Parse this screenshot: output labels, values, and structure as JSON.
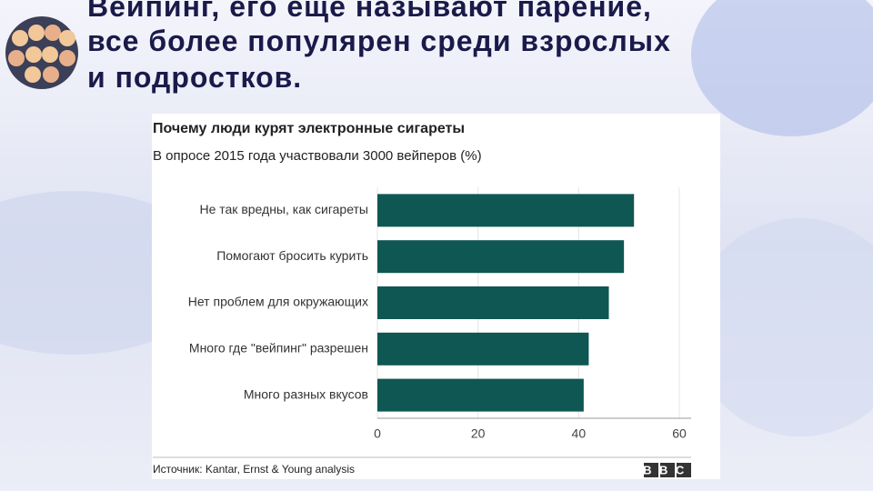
{
  "slide": {
    "heading": "Вейпинг, его еще называют парение, все более популярен среди взрослых и подростков."
  },
  "chart_data": {
    "type": "bar",
    "orientation": "horizontal",
    "title": "Почему люди курят электронные сигареты",
    "subtitle": "В опросе 2015 года участвовали 3000 вейперов (%)",
    "categories": [
      "Не так вредны, как сигареты",
      "Помогают бросить курить",
      "Нет проблем для окружающих",
      "Много где \"вейпинг\" разрешен",
      "Много разных вкусов"
    ],
    "values": [
      51,
      49,
      46,
      42,
      41
    ],
    "color": "#0f5753",
    "xlim": [
      0,
      60
    ],
    "xticks": [
      0,
      20,
      40,
      60
    ],
    "grid": true,
    "source": "Источник: Kantar, Ernst & Young analysis",
    "logo": "BBC"
  }
}
